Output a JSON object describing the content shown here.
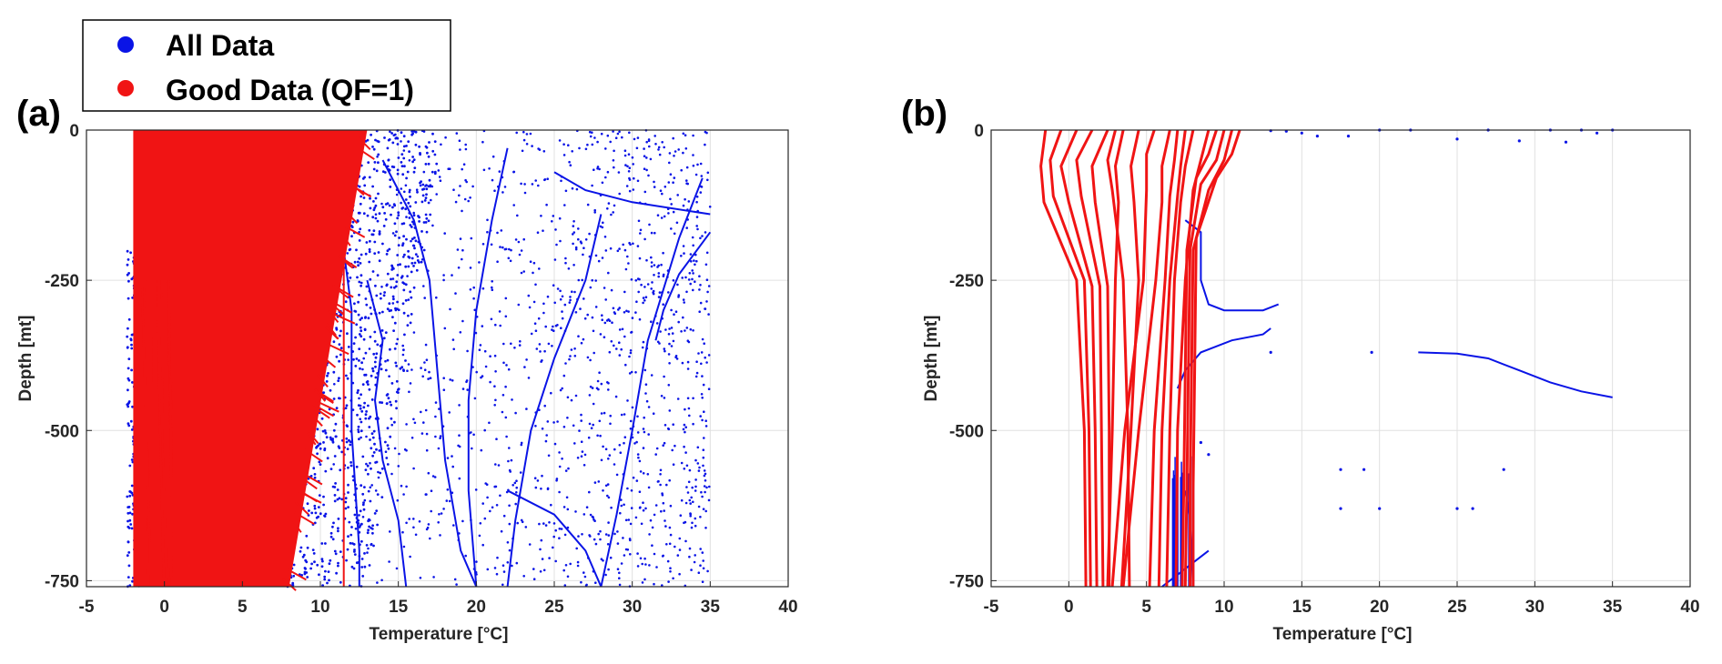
{
  "legend": {
    "entries": [
      {
        "label": "All Data",
        "color": "#0a14e6"
      },
      {
        "label": "Good Data (QF=1)",
        "color": "#f01414"
      }
    ]
  },
  "colors": {
    "all_data": "#0a14e6",
    "good_data": "#f01414",
    "grid": "#e0e0e0",
    "axis": "#262626"
  },
  "chart_data": [
    {
      "panel_label": "(a)",
      "type": "scatter",
      "xlabel": "Temperature [°C]",
      "ylabel": "Depth [mt]",
      "xlim": [
        -5,
        40
      ],
      "ylim": [
        -760,
        0
      ],
      "x_ticks": [
        -5,
        0,
        5,
        10,
        15,
        20,
        25,
        30,
        35,
        40
      ],
      "y_ticks": [
        0,
        -250,
        -500,
        -750
      ],
      "grid": true,
      "good_data_region": {
        "surface_x_range": [
          -2,
          13
        ],
        "bottom_x_range": [
          -2,
          8
        ],
        "vertical_line_x": 11.5
      },
      "series": [
        {
          "name": "All Data",
          "color": "#0a14e6",
          "lines": [
            [
              [
                14,
                -50
              ],
              [
                16,
                -150
              ],
              [
                17,
                -250
              ],
              [
                17.5,
                -400
              ],
              [
                18,
                -550
              ],
              [
                19,
                -700
              ],
              [
                20,
                -760
              ]
            ],
            [
              [
                22,
                -30
              ],
              [
                21,
                -150
              ],
              [
                20,
                -300
              ],
              [
                19.5,
                -450
              ],
              [
                19.5,
                -600
              ],
              [
                20,
                -760
              ]
            ],
            [
              [
                28,
                -140
              ],
              [
                27,
                -250
              ],
              [
                25,
                -380
              ],
              [
                23.5,
                -500
              ],
              [
                22.5,
                -650
              ],
              [
                22,
                -760
              ]
            ],
            [
              [
                34.5,
                -80
              ],
              [
                33,
                -180
              ],
              [
                31,
                -350
              ],
              [
                30,
                -500
              ],
              [
                29,
                -640
              ],
              [
                28,
                -760
              ]
            ],
            [
              [
                35,
                -170
              ],
              [
                33,
                -240
              ],
              [
                32,
                -300
              ],
              [
                31.5,
                -350
              ]
            ],
            [
              [
                25,
                -70
              ],
              [
                27,
                -100
              ],
              [
                30,
                -120
              ],
              [
                35,
                -140
              ]
            ],
            [
              [
                22,
                -600
              ],
              [
                25,
                -640
              ],
              [
                27,
                -700
              ],
              [
                28,
                -760
              ]
            ],
            [
              [
                13,
                -250
              ],
              [
                14,
                -350
              ],
              [
                13.5,
                -450
              ],
              [
                14,
                -550
              ],
              [
                15,
                -650
              ],
              [
                15.5,
                -760
              ]
            ],
            [
              [
                11,
                -100
              ],
              [
                12,
                -300
              ],
              [
                12,
                -500
              ],
              [
                12.5,
                -700
              ],
              [
                12.5,
                -760
              ]
            ]
          ]
        },
        {
          "name": "Good Data (QF=1)",
          "color": "#f01414"
        }
      ]
    },
    {
      "panel_label": "(b)",
      "type": "line",
      "xlabel": "Temperature [°C]",
      "ylabel": "Depth [mt]",
      "xlim": [
        -5,
        40
      ],
      "ylim": [
        -760,
        0
      ],
      "x_ticks": [
        -5,
        0,
        5,
        10,
        15,
        20,
        25,
        30,
        35,
        40
      ],
      "y_ticks": [
        0,
        -250,
        -500,
        -750
      ],
      "grid": true,
      "series": [
        {
          "name": "Good Data (QF=1)",
          "color": "#f01414",
          "profiles": [
            [
              [
                -1.5,
                0
              ],
              [
                -1.8,
                -60
              ],
              [
                -1.6,
                -120
              ],
              [
                0.5,
                -250
              ],
              [
                1.0,
                -500
              ],
              [
                1.1,
                -760
              ]
            ],
            [
              [
                -0.5,
                0
              ],
              [
                -1.2,
                -50
              ],
              [
                -1.0,
                -110
              ],
              [
                1.0,
                -250
              ],
              [
                1.3,
                -500
              ],
              [
                1.4,
                -760
              ]
            ],
            [
              [
                0.5,
                0
              ],
              [
                -0.5,
                -60
              ],
              [
                0.0,
                -120
              ],
              [
                1.5,
                -260
              ],
              [
                1.7,
                -500
              ],
              [
                1.8,
                -760
              ]
            ],
            [
              [
                1.5,
                0
              ],
              [
                0.5,
                -50
              ],
              [
                0.8,
                -110
              ],
              [
                2.0,
                -260
              ],
              [
                2.1,
                -500
              ],
              [
                2.2,
                -760
              ]
            ],
            [
              [
                2.5,
                0
              ],
              [
                1.5,
                -60
              ],
              [
                1.7,
                -120
              ],
              [
                2.5,
                -260
              ],
              [
                2.6,
                -500
              ],
              [
                2.6,
                -760
              ]
            ],
            [
              [
                3.0,
                0
              ],
              [
                2.5,
                -50
              ],
              [
                2.8,
                -100
              ],
              [
                3.5,
                -250
              ],
              [
                3.8,
                -500
              ],
              [
                3.9,
                -760
              ]
            ],
            [
              [
                4.5,
                0
              ],
              [
                4.0,
                -60
              ],
              [
                4.2,
                -120
              ],
              [
                4.5,
                -250
              ],
              [
                4.0,
                -500
              ],
              [
                3.4,
                -760
              ]
            ],
            [
              [
                5.5,
                0
              ],
              [
                5.0,
                -40
              ],
              [
                5.0,
                -100
              ],
              [
                4.8,
                -250
              ],
              [
                3.6,
                -500
              ],
              [
                2.8,
                -760
              ]
            ],
            [
              [
                6.5,
                0
              ],
              [
                6.0,
                -60
              ],
              [
                6.0,
                -120
              ],
              [
                5.6,
                -250
              ],
              [
                4.5,
                -500
              ],
              [
                3.5,
                -760
              ]
            ],
            [
              [
                7.0,
                0
              ],
              [
                6.8,
                -50
              ],
              [
                6.5,
                -110
              ],
              [
                6.2,
                -250
              ],
              [
                5.5,
                -500
              ],
              [
                5.2,
                -760
              ]
            ],
            [
              [
                8.0,
                0
              ],
              [
                7.5,
                -60
              ],
              [
                7.2,
                -120
              ],
              [
                6.8,
                -250
              ],
              [
                6.5,
                -500
              ],
              [
                6.3,
                -760
              ]
            ],
            [
              [
                9.0,
                0
              ],
              [
                8.5,
                -50
              ],
              [
                8.0,
                -100
              ],
              [
                7.5,
                -250
              ],
              [
                7.0,
                -500
              ],
              [
                6.9,
                -760
              ]
            ],
            [
              [
                9.5,
                0
              ],
              [
                9.0,
                -40
              ],
              [
                8.2,
                -80
              ],
              [
                7.6,
                -200
              ],
              [
                7.5,
                -400
              ],
              [
                7.4,
                -600
              ],
              [
                7.3,
                -760
              ]
            ],
            [
              [
                10.0,
                0
              ],
              [
                9.5,
                -50
              ],
              [
                8.5,
                -90
              ],
              [
                7.8,
                -200
              ],
              [
                7.7,
                -400
              ],
              [
                7.6,
                -600
              ],
              [
                7.5,
                -760
              ]
            ],
            [
              [
                10.5,
                0
              ],
              [
                10.0,
                -50
              ],
              [
                9.0,
                -100
              ],
              [
                8.0,
                -200
              ],
              [
                7.9,
                -400
              ],
              [
                7.8,
                -600
              ],
              [
                7.8,
                -760
              ]
            ],
            [
              [
                11.0,
                0
              ],
              [
                10.5,
                -40
              ],
              [
                9.5,
                -80
              ],
              [
                8.2,
                -180
              ],
              [
                8.1,
                -400
              ],
              [
                8.0,
                -600
              ],
              [
                8.0,
                -760
              ]
            ],
            [
              [
                7.5,
                0
              ],
              [
                7.2,
                -60
              ],
              [
                7.0,
                -110
              ],
              [
                6.5,
                -250
              ],
              [
                6.0,
                -500
              ],
              [
                5.8,
                -760
              ]
            ],
            [
              [
                3.5,
                0
              ],
              [
                3.0,
                -60
              ],
              [
                3.2,
                -120
              ],
              [
                3.0,
                -250
              ],
              [
                2.8,
                -500
              ],
              [
                2.5,
                -760
              ]
            ]
          ]
        },
        {
          "name": "All Data",
          "color": "#0a14e6",
          "lines": [
            [
              [
                7.5,
                -150
              ],
              [
                8.5,
                -170
              ],
              [
                8.5,
                -250
              ],
              [
                9.0,
                -290
              ],
              [
                10,
                -300
              ],
              [
                12.5,
                -300
              ],
              [
                13.5,
                -290
              ]
            ],
            [
              [
                7.0,
                -430
              ],
              [
                7.5,
                -400
              ],
              [
                8.5,
                -370
              ],
              [
                10.5,
                -350
              ],
              [
                12.5,
                -340
              ],
              [
                13.0,
                -330
              ]
            ],
            [
              [
                22.5,
                -370
              ],
              [
                25,
                -372
              ],
              [
                27,
                -380
              ],
              [
                29,
                -400
              ],
              [
                31,
                -420
              ],
              [
                33,
                -435
              ],
              [
                35,
                -445
              ]
            ],
            [
              [
                7.5,
                -600
              ],
              [
                7.8,
                -650
              ],
              [
                8.0,
                -760
              ]
            ],
            [
              [
                6.0,
                -760
              ],
              [
                7.0,
                -740
              ],
              [
                8.0,
                -720
              ],
              [
                9.0,
                -700
              ]
            ]
          ]
        }
      ]
    }
  ]
}
